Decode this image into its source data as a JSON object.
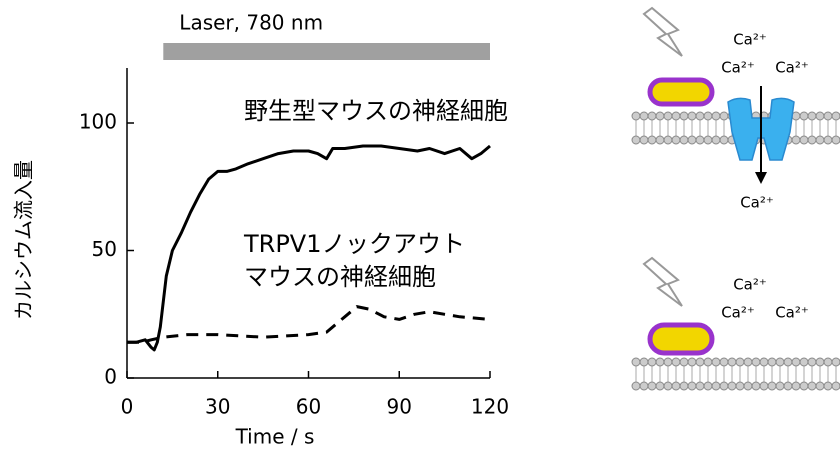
{
  "chart_data": {
    "type": "line",
    "x_label": "Time / s",
    "y_label": "カルシウム流入量",
    "xlim": [
      0,
      120
    ],
    "ylim": [
      0,
      120
    ],
    "xticks": [
      0,
      30,
      60,
      90,
      120
    ],
    "yticks": [
      0,
      50,
      100
    ],
    "laser": {
      "label": "Laser, 780 nm",
      "start": 12,
      "end": 120,
      "color": "#a0a0a0"
    },
    "series": [
      {
        "name": [
          "野生型マウスの神経細胞"
        ],
        "color": "#000000",
        "dash": false,
        "x": [
          0,
          3,
          6,
          8,
          9,
          10,
          11,
          13,
          15,
          18,
          21,
          24,
          27,
          30,
          33,
          36,
          40,
          45,
          50,
          55,
          60,
          63,
          66,
          68,
          72,
          78,
          84,
          90,
          96,
          100,
          105,
          110,
          114,
          117,
          120
        ],
        "values": [
          14,
          14,
          15,
          12,
          11,
          14,
          20,
          40,
          50,
          57,
          65,
          72,
          78,
          81,
          81,
          82,
          84,
          86,
          88,
          89,
          89,
          88,
          86,
          90,
          90,
          91,
          91,
          90,
          89,
          90,
          88,
          90,
          86,
          88,
          91
        ]
      },
      {
        "name": [
          "TRPV1ノックアウト",
          "マウスの神経細胞"
        ],
        "color": "#000000",
        "dash": true,
        "x": [
          0,
          5,
          8,
          12,
          20,
          30,
          45,
          60,
          66,
          72,
          76,
          80,
          85,
          90,
          95,
          100,
          105,
          110,
          120
        ],
        "values": [
          14,
          14,
          15,
          16,
          17,
          17,
          16,
          17,
          18,
          24,
          28,
          27,
          24,
          23,
          25,
          26,
          25,
          24,
          23
        ]
      }
    ]
  },
  "diagram": {
    "top": {
      "ions_above": [
        "Ca²⁺",
        "Ca²⁺",
        "Ca²⁺"
      ],
      "ion_below": "Ca²⁺"
    },
    "bottom": {
      "ions_above": [
        "Ca²⁺",
        "Ca²⁺",
        "Ca²⁺"
      ]
    }
  }
}
